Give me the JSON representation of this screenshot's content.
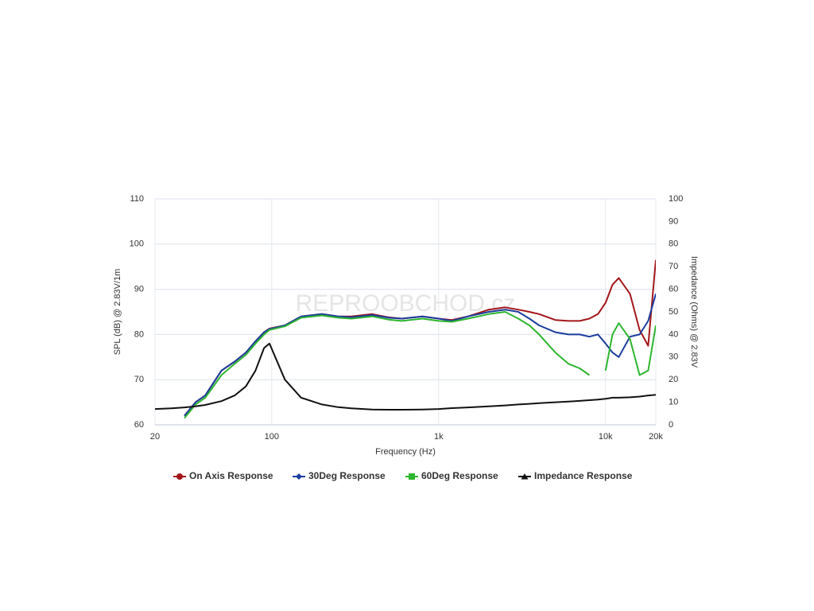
{
  "chart_data": {
    "type": "line",
    "watermark": "REPROOBCHOD.cz",
    "x_label": "Frequency (Hz)",
    "y_label": "SPL (dB) @ 2.83V/1m",
    "y2_label": "Impedance (Ohms) @ 2.83V",
    "x_scale": "log",
    "grid": true,
    "legend": "bottom",
    "xlim": [
      20,
      20000
    ],
    "xticks": [
      20,
      100,
      {
        "value": 1000,
        "label": "1k"
      },
      {
        "value": 10000,
        "label": "10k"
      },
      {
        "value": 20000,
        "label": "20k"
      }
    ],
    "ylim": [
      60,
      110
    ],
    "yticks": [
      60,
      70,
      80,
      90,
      100,
      110
    ],
    "y2lim": [
      0,
      100
    ],
    "y2ticks": [
      0,
      10,
      20,
      30,
      40,
      50,
      60,
      70,
      80,
      90,
      100
    ],
    "x": [
      20,
      25,
      30,
      35,
      40,
      50,
      60,
      70,
      80,
      90,
      97,
      120,
      150,
      200,
      250,
      300,
      400,
      500,
      600,
      800,
      1000,
      1200,
      1500,
      2000,
      2500,
      3000,
      3500,
      4000,
      5000,
      6000,
      7000,
      8000,
      9000,
      10000,
      11000,
      12000,
      14000,
      16000,
      18000,
      20000
    ],
    "series": [
      {
        "name": "On Axis Response",
        "color": "#a3161b",
        "marker": "circle",
        "values": [
          null,
          null,
          62,
          65,
          66.5,
          72,
          74,
          76,
          78.5,
          80.5,
          81.3,
          82,
          84,
          84.5,
          84,
          84,
          84.5,
          83.8,
          83.5,
          84,
          83.5,
          83.2,
          84,
          85.5,
          86,
          85.5,
          85,
          84.5,
          83.2,
          83,
          83,
          83.5,
          84.5,
          87,
          91,
          92.5,
          89,
          81,
          77.5,
          96.5
        ]
      },
      {
        "name": "30Deg Response",
        "color": "#1b3d9e",
        "marker": "diamond",
        "values": [
          null,
          null,
          62,
          65,
          66.5,
          72,
          74,
          76,
          78.5,
          80.5,
          81.2,
          82,
          84,
          84.5,
          84,
          83.8,
          84.3,
          83.7,
          83.5,
          84,
          83.5,
          83,
          84,
          85,
          85.5,
          85,
          83.5,
          82,
          80.5,
          80,
          80,
          79.5,
          80,
          78,
          76,
          75,
          79.5,
          80,
          83,
          89
        ]
      },
      {
        "name": "60Deg Response",
        "color": "#2db52f",
        "marker": "square",
        "values": [
          null,
          null,
          61.5,
          64.5,
          66,
          71,
          73.5,
          75.5,
          78,
          80,
          81,
          81.8,
          83.7,
          84.2,
          83.7,
          83.5,
          84,
          83.3,
          83,
          83.5,
          83,
          82.8,
          83.5,
          84.5,
          85,
          83.5,
          82,
          80,
          76,
          73.5,
          72.5,
          71,
          null,
          72,
          80,
          82.5,
          79,
          71,
          72,
          82
        ]
      },
      {
        "name": "Impedance Response",
        "color": "#111111",
        "marker": "triangle",
        "axis": "y2",
        "values": [
          7,
          7.3,
          7.7,
          8.2,
          8.8,
          10.5,
          13,
          17,
          24,
          34,
          36,
          20,
          12,
          9,
          7.8,
          7.3,
          6.8,
          6.7,
          6.7,
          6.8,
          7,
          7.4,
          7.7,
          8.2,
          8.6,
          9,
          9.3,
          9.6,
          10,
          10.3,
          10.6,
          10.9,
          11.2,
          11.5,
          12,
          12,
          12.2,
          12.5,
          13,
          13.3
        ]
      }
    ]
  }
}
